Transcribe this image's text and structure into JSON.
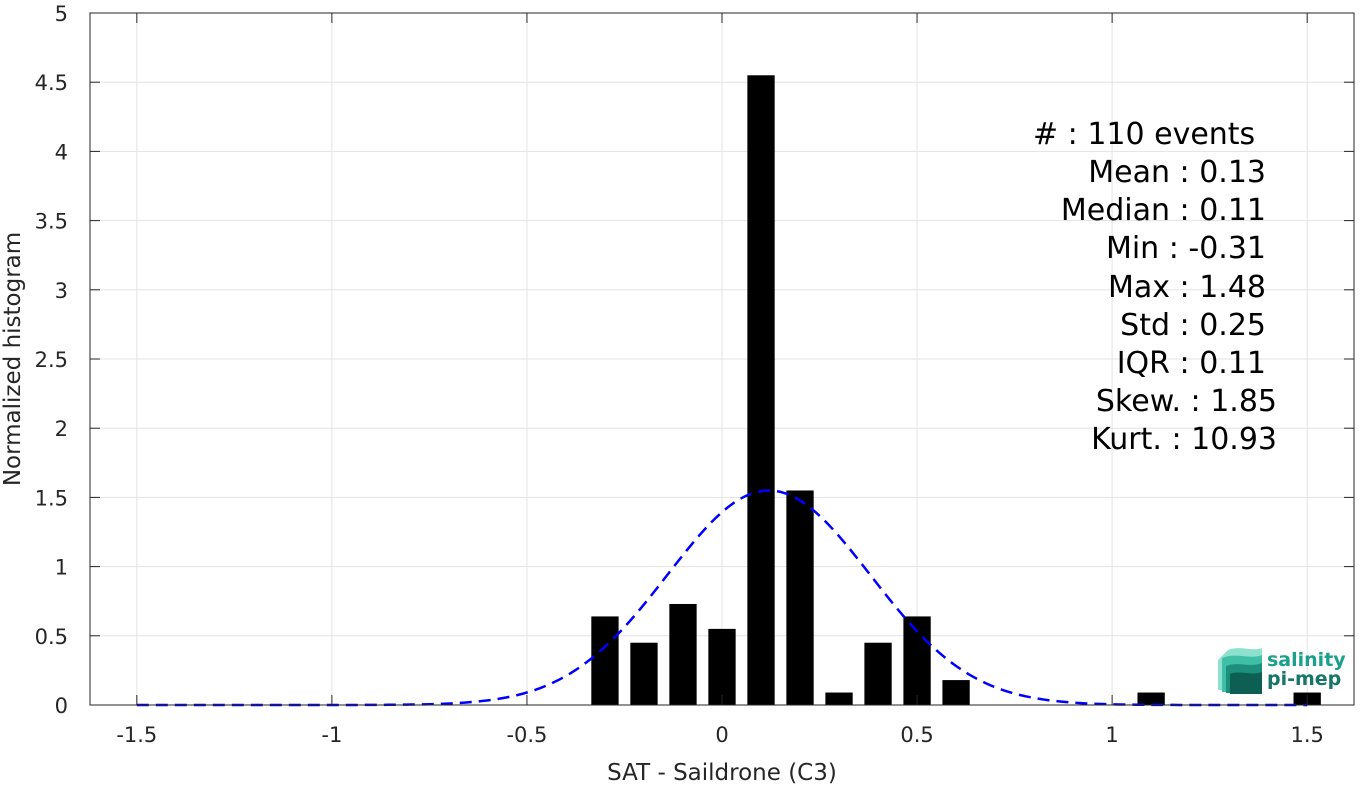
{
  "chart_data": {
    "type": "bar",
    "xlabel": "SAT - Saildrone (C3)",
    "ylabel": "Normalized histogram",
    "xlim": [
      -1.62,
      1.62
    ],
    "ylim": [
      0,
      5
    ],
    "xticks": [
      -1.5,
      -1,
      -0.5,
      0,
      0.5,
      1,
      1.5
    ],
    "xtick_labels": [
      "-1.5",
      "-1",
      "-0.5",
      "0",
      "0.5",
      "1",
      "1.5"
    ],
    "yticks": [
      0,
      0.5,
      1,
      1.5,
      2,
      2.5,
      3,
      3.5,
      4,
      4.5,
      5
    ],
    "ytick_labels": [
      "0",
      "0.5",
      "1",
      "1.5",
      "2",
      "2.5",
      "3",
      "3.5",
      "4",
      "4.5",
      "5"
    ],
    "grid": true,
    "bar_width": 0.07,
    "bars": [
      {
        "x": -0.3,
        "y": 0.64
      },
      {
        "x": -0.2,
        "y": 0.45
      },
      {
        "x": -0.1,
        "y": 0.73
      },
      {
        "x": 0.0,
        "y": 0.55
      },
      {
        "x": 0.1,
        "y": 4.55
      },
      {
        "x": 0.2,
        "y": 1.55
      },
      {
        "x": 0.3,
        "y": 0.09
      },
      {
        "x": 0.4,
        "y": 0.45
      },
      {
        "x": 0.5,
        "y": 0.64
      },
      {
        "x": 0.6,
        "y": 0.18
      },
      {
        "x": 1.1,
        "y": 0.09
      },
      {
        "x": 1.5,
        "y": 0.09
      }
    ],
    "fit_curve": {
      "style": "dashed",
      "color": "#0000ff",
      "mean": 0.12,
      "std": 0.26,
      "peak": 1.55,
      "x_range": [
        -1.5,
        1.5
      ]
    },
    "bar_color": "#000000"
  },
  "stats": [
    "#  : 110 events",
    "Mean : 0.13",
    "Median : 0.11",
    "Min : -0.31",
    "Max : 1.48",
    "Std : 0.25",
    "IQR : 0.11",
    "Skew. : 1.85",
    "Kurt. : 10.93"
  ],
  "logo": {
    "line1": "salinity",
    "line2": "pi-mep",
    "color1": "#1aa08c",
    "color2": "#17756a"
  }
}
